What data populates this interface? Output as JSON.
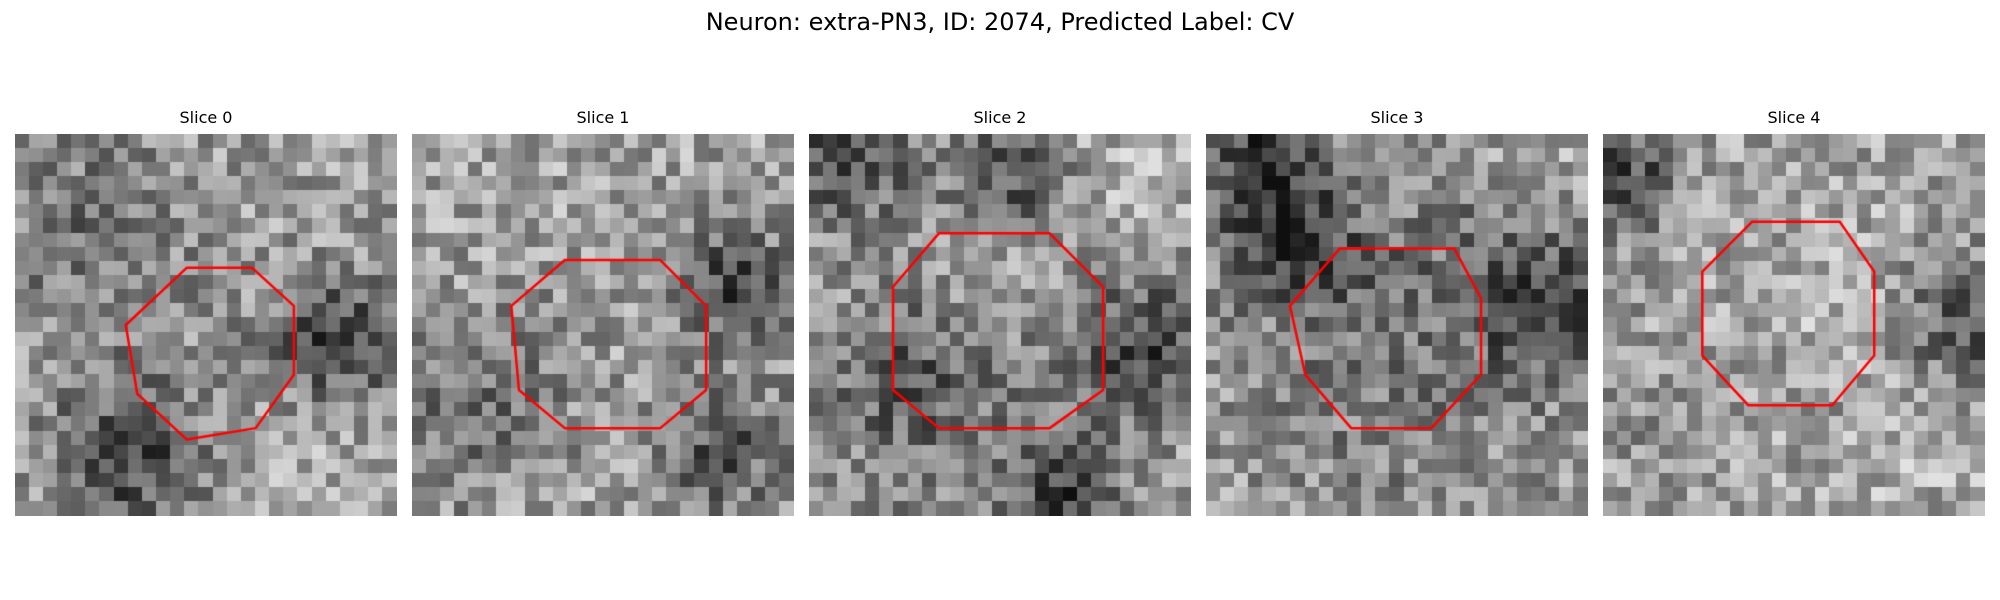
{
  "figure": {
    "title": "Neuron: extra-PN3, ID: 2074, Predicted Label: CV",
    "contour_color": "#ff0000",
    "colormap": "grayscale",
    "slices": [
      {
        "label": "Slice 0",
        "seed": 11,
        "dark_spots": [
          [
            0.85,
            0.55,
            0.18
          ],
          [
            0.3,
            0.85,
            0.2
          ]
        ],
        "contour": [
          [
            0.45,
            0.35
          ],
          [
            0.62,
            0.35
          ],
          [
            0.73,
            0.45
          ],
          [
            0.73,
            0.63
          ],
          [
            0.63,
            0.77
          ],
          [
            0.45,
            0.8
          ],
          [
            0.32,
            0.68
          ],
          [
            0.29,
            0.5
          ]
        ]
      },
      {
        "label": "Slice 1",
        "seed": 23,
        "dark_spots": [
          [
            0.8,
            0.82,
            0.18
          ],
          [
            0.85,
            0.4,
            0.15
          ]
        ],
        "contour": [
          [
            0.4,
            0.33
          ],
          [
            0.65,
            0.33
          ],
          [
            0.77,
            0.45
          ],
          [
            0.77,
            0.67
          ],
          [
            0.65,
            0.77
          ],
          [
            0.4,
            0.77
          ],
          [
            0.28,
            0.67
          ],
          [
            0.26,
            0.45
          ]
        ]
      },
      {
        "label": "Slice 2",
        "seed": 37,
        "dark_spots": [
          [
            0.88,
            0.55,
            0.2
          ],
          [
            0.1,
            0.05,
            0.2
          ],
          [
            0.67,
            0.95,
            0.15
          ],
          [
            0.55,
            0.1,
            0.15
          ]
        ],
        "contour": [
          [
            0.34,
            0.26
          ],
          [
            0.63,
            0.26
          ],
          [
            0.77,
            0.4
          ],
          [
            0.77,
            0.67
          ],
          [
            0.63,
            0.77
          ],
          [
            0.34,
            0.77
          ],
          [
            0.22,
            0.67
          ],
          [
            0.22,
            0.4
          ]
        ]
      },
      {
        "label": "Slice 3",
        "seed": 53,
        "dark_spots": [
          [
            0.9,
            0.45,
            0.2
          ],
          [
            0.2,
            0.25,
            0.18
          ],
          [
            0.15,
            0.05,
            0.15
          ]
        ],
        "contour": [
          [
            0.35,
            0.3
          ],
          [
            0.65,
            0.3
          ],
          [
            0.72,
            0.43
          ],
          [
            0.72,
            0.63
          ],
          [
            0.59,
            0.77
          ],
          [
            0.38,
            0.77
          ],
          [
            0.26,
            0.63
          ],
          [
            0.22,
            0.45
          ]
        ]
      },
      {
        "label": "Slice 4",
        "seed": 71,
        "dark_spots": [
          [
            0.95,
            0.5,
            0.18
          ],
          [
            0.05,
            0.1,
            0.15
          ]
        ],
        "contour": [
          [
            0.39,
            0.23
          ],
          [
            0.62,
            0.23
          ],
          [
            0.71,
            0.36
          ],
          [
            0.71,
            0.58
          ],
          [
            0.6,
            0.71
          ],
          [
            0.38,
            0.71
          ],
          [
            0.26,
            0.58
          ],
          [
            0.26,
            0.36
          ]
        ]
      }
    ]
  }
}
